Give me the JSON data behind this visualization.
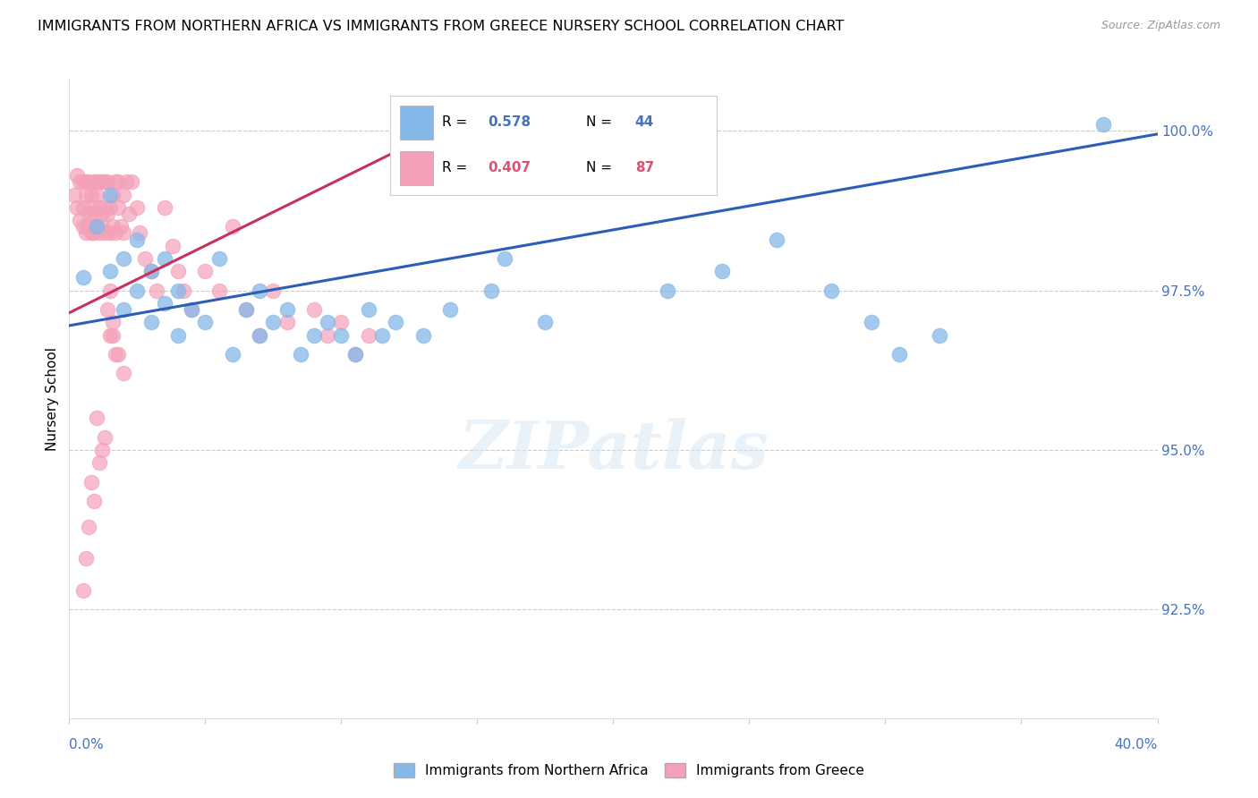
{
  "title": "IMMIGRANTS FROM NORTHERN AFRICA VS IMMIGRANTS FROM GREECE NURSERY SCHOOL CORRELATION CHART",
  "source": "Source: ZipAtlas.com",
  "ylabel": "Nursery School",
  "ytick_labels": [
    "100.0%",
    "97.5%",
    "95.0%",
    "92.5%"
  ],
  "ytick_values": [
    1.0,
    0.975,
    0.95,
    0.925
  ],
  "xlim": [
    0.0,
    0.4
  ],
  "ylim": [
    0.908,
    1.008
  ],
  "legend_r_blue": "0.578",
  "legend_n_blue": "44",
  "legend_r_pink": "0.407",
  "legend_n_pink": "87",
  "legend_label_blue": "Immigrants from Northern Africa",
  "legend_label_pink": "Immigrants from Greece",
  "blue_color": "#85B8E8",
  "pink_color": "#F4A0B8",
  "line_blue_color": "#2B5EB8",
  "line_pink_color": "#C83060",
  "blue_line_x": [
    0.0,
    0.4
  ],
  "blue_line_y": [
    0.9695,
    0.9995
  ],
  "pink_line_x": [
    0.0,
    0.145
  ],
  "pink_line_y": [
    0.9715,
    1.002
  ],
  "blue_scatter_x": [
    0.005,
    0.01,
    0.015,
    0.015,
    0.02,
    0.02,
    0.025,
    0.025,
    0.03,
    0.03,
    0.035,
    0.035,
    0.04,
    0.04,
    0.045,
    0.05,
    0.055,
    0.06,
    0.065,
    0.07,
    0.07,
    0.075,
    0.08,
    0.085,
    0.09,
    0.095,
    0.1,
    0.105,
    0.11,
    0.115,
    0.12,
    0.13,
    0.14,
    0.155,
    0.16,
    0.175,
    0.22,
    0.24,
    0.26,
    0.28,
    0.295,
    0.305,
    0.32,
    0.38
  ],
  "blue_scatter_y": [
    0.977,
    0.985,
    0.978,
    0.99,
    0.972,
    0.98,
    0.975,
    0.983,
    0.97,
    0.978,
    0.973,
    0.98,
    0.975,
    0.968,
    0.972,
    0.97,
    0.98,
    0.965,
    0.972,
    0.975,
    0.968,
    0.97,
    0.972,
    0.965,
    0.968,
    0.97,
    0.968,
    0.965,
    0.972,
    0.968,
    0.97,
    0.968,
    0.972,
    0.975,
    0.98,
    0.97,
    0.975,
    0.978,
    0.983,
    0.975,
    0.97,
    0.965,
    0.968,
    1.001
  ],
  "pink_scatter_x": [
    0.002,
    0.003,
    0.003,
    0.004,
    0.004,
    0.005,
    0.005,
    0.005,
    0.006,
    0.006,
    0.006,
    0.007,
    0.007,
    0.007,
    0.008,
    0.008,
    0.008,
    0.009,
    0.009,
    0.009,
    0.01,
    0.01,
    0.01,
    0.011,
    0.011,
    0.011,
    0.012,
    0.012,
    0.012,
    0.013,
    0.013,
    0.013,
    0.014,
    0.014,
    0.015,
    0.015,
    0.016,
    0.016,
    0.017,
    0.017,
    0.018,
    0.018,
    0.019,
    0.02,
    0.02,
    0.021,
    0.022,
    0.023,
    0.025,
    0.026,
    0.028,
    0.03,
    0.032,
    0.035,
    0.038,
    0.04,
    0.042,
    0.045,
    0.05,
    0.055,
    0.06,
    0.065,
    0.07,
    0.075,
    0.08,
    0.09,
    0.095,
    0.1,
    0.105,
    0.11,
    0.015,
    0.016,
    0.017,
    0.015,
    0.014,
    0.016,
    0.018,
    0.02,
    0.01,
    0.012,
    0.008,
    0.009,
    0.011,
    0.013,
    0.007,
    0.006,
    0.005
  ],
  "pink_scatter_y": [
    0.99,
    0.993,
    0.988,
    0.992,
    0.986,
    0.988,
    0.992,
    0.985,
    0.99,
    0.984,
    0.992,
    0.987,
    0.992,
    0.985,
    0.988,
    0.984,
    0.99,
    0.987,
    0.992,
    0.984,
    0.99,
    0.985,
    0.992,
    0.988,
    0.984,
    0.992,
    0.987,
    0.992,
    0.985,
    0.988,
    0.984,
    0.992,
    0.987,
    0.992,
    0.988,
    0.984,
    0.99,
    0.985,
    0.992,
    0.984,
    0.988,
    0.992,
    0.985,
    0.99,
    0.984,
    0.992,
    0.987,
    0.992,
    0.988,
    0.984,
    0.98,
    0.978,
    0.975,
    0.988,
    0.982,
    0.978,
    0.975,
    0.972,
    0.978,
    0.975,
    0.985,
    0.972,
    0.968,
    0.975,
    0.97,
    0.972,
    0.968,
    0.97,
    0.965,
    0.968,
    0.975,
    0.97,
    0.965,
    0.968,
    0.972,
    0.968,
    0.965,
    0.962,
    0.955,
    0.95,
    0.945,
    0.942,
    0.948,
    0.952,
    0.938,
    0.933,
    0.928
  ],
  "background_color": "#FFFFFF",
  "grid_color": "#CCCCCC"
}
